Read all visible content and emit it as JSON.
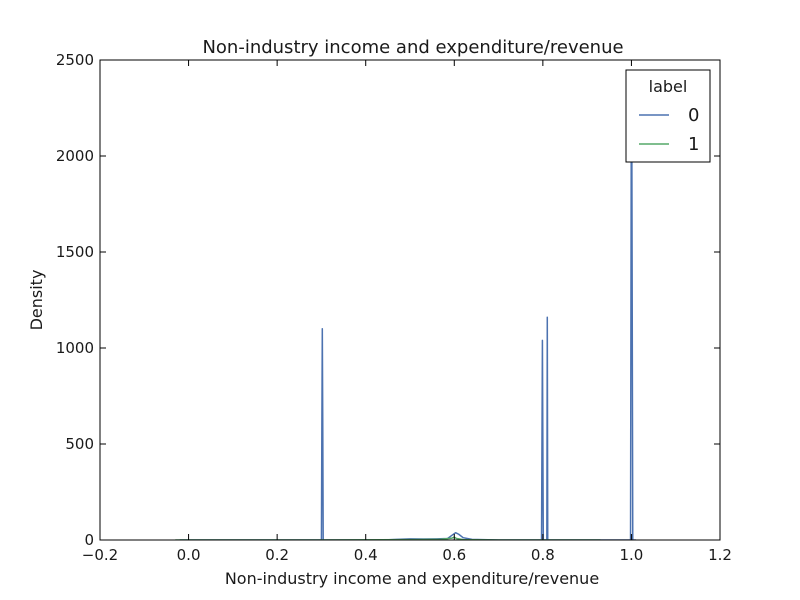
{
  "chart_data": {
    "type": "line",
    "title": "Non-industry income and expenditure/revenue",
    "xlabel": "Non-industry income and expenditure/revenue",
    "ylabel": "Density",
    "xlim": [
      -0.2,
      1.2
    ],
    "ylim": [
      0,
      2500
    ],
    "xticks": [
      -0.2,
      0.0,
      0.2,
      0.4,
      0.6,
      0.8,
      1.0,
      1.2
    ],
    "xtick_labels": [
      "−0.2",
      "0.0",
      "0.2",
      "0.4",
      "0.6",
      "0.8",
      "1.0",
      "1.2"
    ],
    "yticks": [
      0,
      500,
      1000,
      1500,
      2000,
      2500
    ],
    "ytick_labels": [
      "0",
      "500",
      "1000",
      "1500",
      "2000",
      "2500"
    ],
    "grid": false,
    "legend": {
      "title": "label",
      "placement": "top-right"
    },
    "series": [
      {
        "name": "0",
        "color": "#4c72b0",
        "points": [
          [
            -0.02,
            0
          ],
          [
            0.3,
            0
          ],
          [
            0.301,
            600
          ],
          [
            0.302,
            1100
          ],
          [
            0.303,
            600
          ],
          [
            0.304,
            0
          ],
          [
            0.44,
            0
          ],
          [
            0.47,
            3
          ],
          [
            0.5,
            6
          ],
          [
            0.53,
            5
          ],
          [
            0.56,
            6
          ],
          [
            0.585,
            8
          ],
          [
            0.595,
            25
          ],
          [
            0.603,
            38
          ],
          [
            0.61,
            30
          ],
          [
            0.62,
            12
          ],
          [
            0.64,
            3
          ],
          [
            0.7,
            0
          ],
          [
            0.797,
            0
          ],
          [
            0.799,
            1040
          ],
          [
            0.801,
            0
          ],
          [
            0.809,
            0
          ],
          [
            0.81,
            1160
          ],
          [
            0.811,
            0
          ],
          [
            0.93,
            0
          ],
          [
            0.998,
            0
          ],
          [
            0.9995,
            2000
          ],
          [
            1.001,
            2000
          ],
          [
            1.003,
            0
          ],
          [
            1.01,
            0
          ]
        ]
      },
      {
        "name": "1",
        "color": "#55a868",
        "points": [
          [
            -0.03,
            0
          ],
          [
            0.3,
            0
          ],
          [
            0.5,
            2
          ],
          [
            0.57,
            4
          ],
          [
            0.595,
            10
          ],
          [
            0.6,
            15
          ],
          [
            0.605,
            8
          ],
          [
            0.62,
            2
          ],
          [
            0.7,
            0
          ],
          [
            0.93,
            0
          ]
        ]
      }
    ]
  }
}
